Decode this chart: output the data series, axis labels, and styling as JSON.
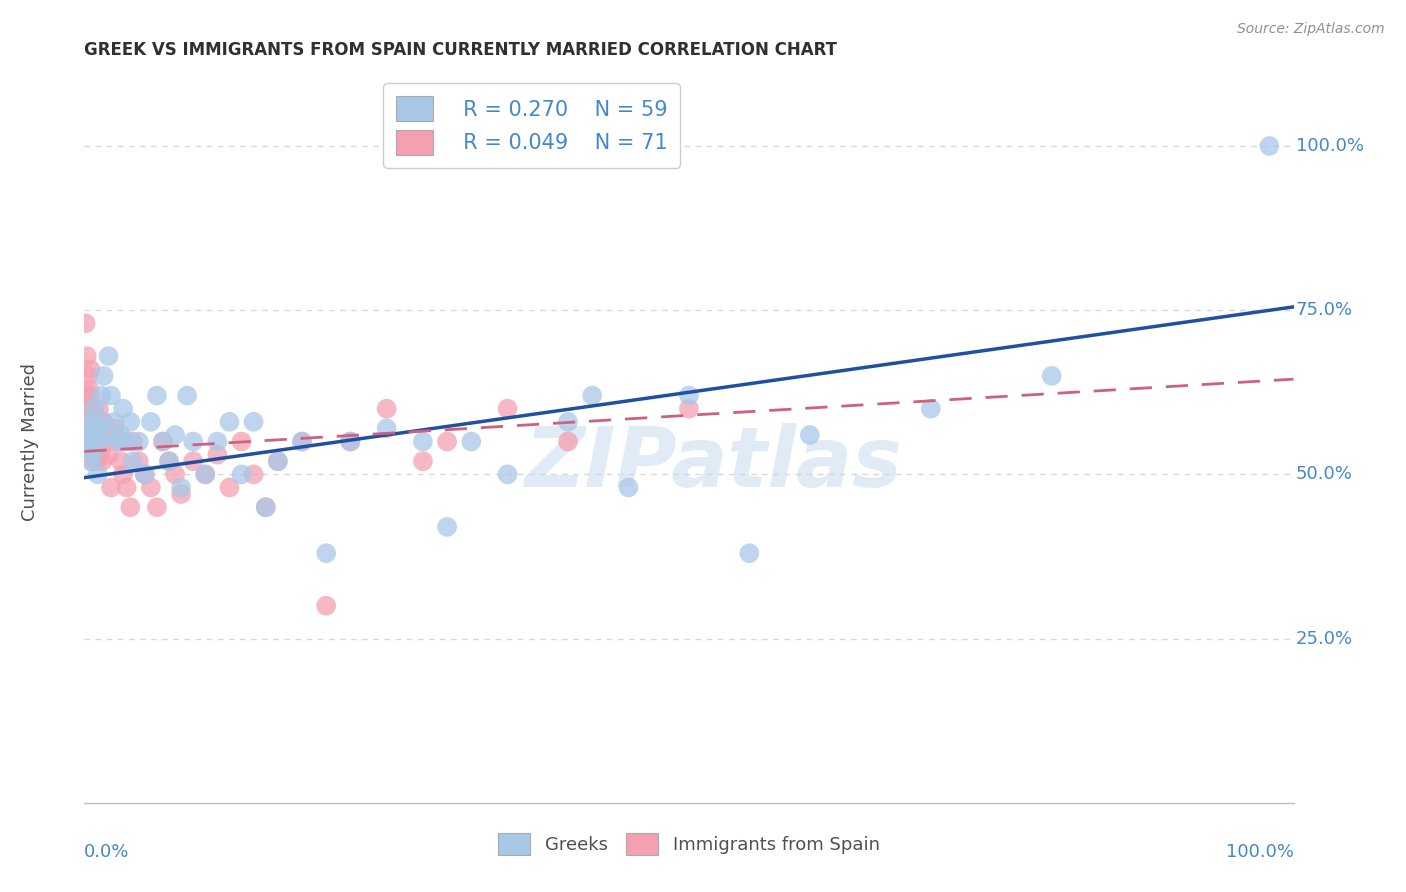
{
  "title": "GREEK VS IMMIGRANTS FROM SPAIN CURRENTLY MARRIED CORRELATION CHART",
  "source_text": "Source: ZipAtlas.com",
  "ylabel": "Currently Married",
  "watermark": "ZIPatlas",
  "legend_greek_R": "R = 0.270",
  "legend_greek_N": "N = 59",
  "legend_spain_R": "R = 0.049",
  "legend_spain_N": "N = 71",
  "blue_color": "#A8C8E8",
  "pink_color": "#F4A0B0",
  "blue_line_color": "#2050A0",
  "pink_line_color": "#D06080",
  "title_color": "#303030",
  "source_color": "#909090",
  "tick_label_color": "#4488CC",
  "grid_color": "#D8D8D8",
  "background_color": "#FFFFFF",
  "greeks_x": [
    0.001,
    0.002,
    0.003,
    0.004,
    0.005,
    0.006,
    0.007,
    0.008,
    0.009,
    0.01,
    0.011,
    0.012,
    0.014,
    0.015,
    0.016,
    0.018,
    0.02,
    0.022,
    0.025,
    0.028,
    0.03,
    0.032,
    0.035,
    0.038,
    0.04,
    0.045,
    0.05,
    0.055,
    0.06,
    0.065,
    0.07,
    0.075,
    0.08,
    0.085,
    0.09,
    0.1,
    0.11,
    0.12,
    0.13,
    0.14,
    0.15,
    0.16,
    0.18,
    0.2,
    0.22,
    0.25,
    0.28,
    0.3,
    0.32,
    0.35,
    0.4,
    0.42,
    0.45,
    0.5,
    0.55,
    0.6,
    0.7,
    0.8,
    0.98
  ],
  "greeks_y": [
    0.54,
    0.56,
    0.55,
    0.57,
    0.52,
    0.58,
    0.53,
    0.6,
    0.55,
    0.57,
    0.5,
    0.55,
    0.62,
    0.58,
    0.65,
    0.56,
    0.68,
    0.62,
    0.58,
    0.55,
    0.56,
    0.6,
    0.55,
    0.58,
    0.52,
    0.55,
    0.5,
    0.58,
    0.62,
    0.55,
    0.52,
    0.56,
    0.48,
    0.62,
    0.55,
    0.5,
    0.55,
    0.58,
    0.5,
    0.58,
    0.45,
    0.52,
    0.55,
    0.38,
    0.55,
    0.57,
    0.55,
    0.42,
    0.55,
    0.5,
    0.58,
    0.62,
    0.48,
    0.62,
    0.38,
    0.56,
    0.6,
    0.65,
    1.0
  ],
  "spain_x": [
    0.001,
    0.001,
    0.002,
    0.002,
    0.002,
    0.003,
    0.003,
    0.003,
    0.004,
    0.004,
    0.004,
    0.005,
    0.005,
    0.005,
    0.005,
    0.006,
    0.006,
    0.006,
    0.007,
    0.007,
    0.007,
    0.008,
    0.008,
    0.008,
    0.009,
    0.009,
    0.01,
    0.01,
    0.01,
    0.011,
    0.012,
    0.012,
    0.013,
    0.014,
    0.015,
    0.016,
    0.018,
    0.02,
    0.022,
    0.025,
    0.028,
    0.03,
    0.032,
    0.035,
    0.038,
    0.04,
    0.045,
    0.05,
    0.055,
    0.06,
    0.065,
    0.07,
    0.075,
    0.08,
    0.09,
    0.1,
    0.11,
    0.12,
    0.13,
    0.14,
    0.15,
    0.16,
    0.18,
    0.2,
    0.22,
    0.25,
    0.28,
    0.3,
    0.35,
    0.4,
    0.5
  ],
  "spain_y": [
    0.73,
    0.55,
    0.68,
    0.62,
    0.57,
    0.65,
    0.6,
    0.58,
    0.63,
    0.57,
    0.54,
    0.66,
    0.62,
    0.58,
    0.55,
    0.6,
    0.57,
    0.53,
    0.58,
    0.55,
    0.52,
    0.6,
    0.56,
    0.53,
    0.57,
    0.54,
    0.58,
    0.55,
    0.52,
    0.56,
    0.6,
    0.53,
    0.57,
    0.54,
    0.52,
    0.58,
    0.56,
    0.53,
    0.48,
    0.57,
    0.55,
    0.52,
    0.5,
    0.48,
    0.45,
    0.55,
    0.52,
    0.5,
    0.48,
    0.45,
    0.55,
    0.52,
    0.5,
    0.47,
    0.52,
    0.5,
    0.53,
    0.48,
    0.55,
    0.5,
    0.45,
    0.52,
    0.55,
    0.3,
    0.55,
    0.6,
    0.52,
    0.55,
    0.6,
    0.55,
    0.6
  ],
  "greek_line_x0": 0.0,
  "greek_line_x1": 1.0,
  "greek_line_y0": 0.495,
  "greek_line_y1": 0.755,
  "spain_line_x0": 0.0,
  "spain_line_x1": 1.0,
  "spain_line_y0": 0.535,
  "spain_line_y1": 0.645,
  "xlim": [
    0.0,
    1.0
  ],
  "ylim": [
    0.0,
    1.1
  ],
  "ytick_vals": [
    0.25,
    0.5,
    0.75,
    1.0
  ],
  "ytick_labels": [
    "25.0%",
    "50.0%",
    "75.0%",
    "100.0%"
  ]
}
